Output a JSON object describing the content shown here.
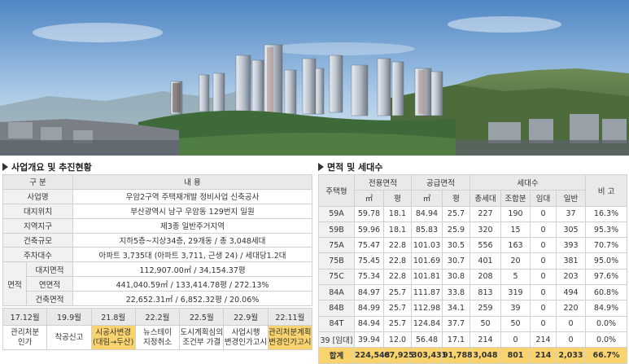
{
  "hero": {
    "alt_icon": "apartment-rendering-image"
  },
  "overview": {
    "title": "사업개요 및 추진현황",
    "col_category": "구 분",
    "col_content": "내 용",
    "rows": [
      {
        "label": "사업명",
        "value": "우암2구역 주택재개발 정비사업 신축공사"
      },
      {
        "label": "대지위치",
        "value": "부산광역시 남구 우암동 129번지 일원"
      },
      {
        "label": "지역지구",
        "value": "제3종 일반주거지역"
      },
      {
        "label": "건축규모",
        "value": "지하5층~지상34층, 29개동 / 총 3,048세대"
      },
      {
        "label": "주차대수",
        "value": "아파트 3,735대 (아파트 3,711, 근생 24) / 세대당1.2대"
      }
    ],
    "area_group": "면적",
    "area_rows": [
      {
        "label": "대지면적",
        "value": "112,907.00㎡ / 34,154.37평"
      },
      {
        "label": "연면적",
        "value": "441,040.59㎡ / 133,414.78평 / 272.13%"
      },
      {
        "label": "건축면적",
        "value": "22,652.31㎡ / 6,852.32평 / 20.06%"
      }
    ]
  },
  "timeline": {
    "dates": [
      "17.12월",
      "19.9월",
      "21.8월",
      "22.2월",
      "22.5월",
      "22.9월",
      "22.11월"
    ],
    "events": [
      [
        "관리처분",
        "인가"
      ],
      [
        "착공신고",
        ""
      ],
      [
        "시공사변경",
        "(대림→두산)"
      ],
      [
        "뉴스테이",
        "지정취소"
      ],
      [
        "도시계획심의",
        "조건부 가결"
      ],
      [
        "사업시행",
        "변경인가고시"
      ],
      [
        "관리처분계획",
        "변경인가고시"
      ]
    ]
  },
  "units": {
    "title": "면적 및 세대수",
    "h_type": "주택형",
    "h_exclusive": "전용면적",
    "h_supply": "공급면적",
    "h_households": "세대수",
    "h_note": "비 고",
    "sub": [
      "㎡",
      "평",
      "㎡",
      "평",
      "총세대",
      "조합분",
      "임대",
      "일반"
    ],
    "rows": [
      [
        "59A",
        "59.78",
        "18.1",
        "84.94",
        "25.7",
        "227",
        "190",
        "0",
        "37",
        "16.3%"
      ],
      [
        "59B",
        "59.96",
        "18.1",
        "85.83",
        "25.9",
        "320",
        "15",
        "0",
        "305",
        "95.3%"
      ],
      [
        "75A",
        "75.47",
        "22.8",
        "101.03",
        "30.5",
        "556",
        "163",
        "0",
        "393",
        "70.7%"
      ],
      [
        "75B",
        "75.45",
        "22.8",
        "101.69",
        "30.7",
        "401",
        "20",
        "0",
        "381",
        "95.0%"
      ],
      [
        "75C",
        "75.34",
        "22.8",
        "101.81",
        "30.8",
        "208",
        "5",
        "0",
        "203",
        "97.6%"
      ],
      [
        "84A",
        "84.97",
        "25.7",
        "111.87",
        "33.8",
        "813",
        "319",
        "0",
        "494",
        "60.8%"
      ],
      [
        "84B",
        "84.99",
        "25.7",
        "112.98",
        "34.1",
        "259",
        "39",
        "0",
        "220",
        "84.9%"
      ],
      [
        "84T",
        "84.94",
        "25.7",
        "124.84",
        "37.7",
        "50",
        "50",
        "0",
        "0",
        "0.0%"
      ],
      [
        "39 [임대]",
        "39.94",
        "12.0",
        "56.48",
        "17.1",
        "214",
        "0",
        "214",
        "0",
        "0.0%"
      ]
    ],
    "total": [
      "합계",
      "224,548",
      "67,925",
      "303,431",
      "91,788",
      "3,048",
      "801",
      "214",
      "2,033",
      "66.7%"
    ]
  }
}
